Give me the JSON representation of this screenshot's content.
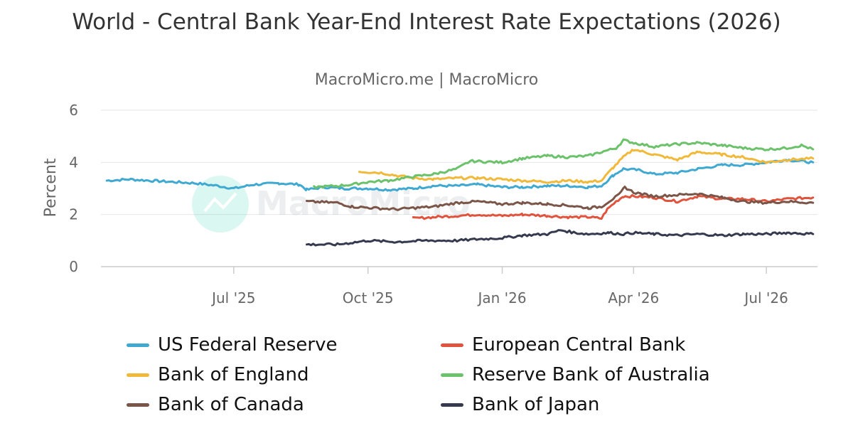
{
  "header": {
    "title": "World - Central Bank Year-End Interest Rate Expectations (2026)",
    "subtitle": "MacroMicro.me | MacroMicro"
  },
  "watermark": {
    "text": "MacroMicro"
  },
  "chart_data": {
    "type": "line",
    "ylabel": "Percent",
    "xlabel": "",
    "ylim": [
      0,
      6
    ],
    "y_ticks": [
      0,
      2,
      4,
      6
    ],
    "x_range": [
      "2025-04-01",
      "2026-08-05"
    ],
    "x_ticks": [
      {
        "date": "2025-07-01",
        "label": "Jul '25"
      },
      {
        "date": "2025-10-01",
        "label": "Oct '25"
      },
      {
        "date": "2026-01-01",
        "label": "Jan '26"
      },
      {
        "date": "2026-04-01",
        "label": "Apr '26"
      },
      {
        "date": "2026-07-01",
        "label": "Jul '26"
      }
    ],
    "grid": "horizontal",
    "legend_position": "bottom",
    "series": [
      {
        "name": "US Federal Reserve",
        "color": "#3fa9d1",
        "points": [
          [
            "2025-04-05",
            3.3
          ],
          [
            "2025-04-20",
            3.35
          ],
          [
            "2025-05-05",
            3.3
          ],
          [
            "2025-05-20",
            3.25
          ],
          [
            "2025-06-05",
            3.2
          ],
          [
            "2025-06-20",
            3.1
          ],
          [
            "2025-07-01",
            3.0
          ],
          [
            "2025-07-15",
            3.15
          ],
          [
            "2025-08-01",
            3.2
          ],
          [
            "2025-08-15",
            3.15
          ],
          [
            "2025-08-20",
            2.95
          ],
          [
            "2025-09-01",
            3.05
          ],
          [
            "2025-09-15",
            3.0
          ],
          [
            "2025-10-01",
            3.0
          ],
          [
            "2025-10-15",
            2.95
          ],
          [
            "2025-11-01",
            3.0
          ],
          [
            "2025-11-15",
            3.1
          ],
          [
            "2025-12-01",
            3.1
          ],
          [
            "2025-12-15",
            3.15
          ],
          [
            "2026-01-01",
            3.05
          ],
          [
            "2026-01-15",
            3.05
          ],
          [
            "2026-02-01",
            3.1
          ],
          [
            "2026-02-15",
            3.1
          ],
          [
            "2026-03-01",
            3.05
          ],
          [
            "2026-03-10",
            3.1
          ],
          [
            "2026-03-18",
            3.5
          ],
          [
            "2026-03-25",
            3.75
          ],
          [
            "2026-04-05",
            3.7
          ],
          [
            "2026-04-15",
            3.55
          ],
          [
            "2026-05-01",
            3.6
          ],
          [
            "2026-05-15",
            3.75
          ],
          [
            "2026-06-01",
            3.9
          ],
          [
            "2026-06-15",
            3.9
          ],
          [
            "2026-07-01",
            4.0
          ],
          [
            "2026-07-15",
            4.1
          ],
          [
            "2026-08-02",
            4.0
          ]
        ]
      },
      {
        "name": "European Central Bank",
        "color": "#e0533d",
        "points": [
          [
            "2025-11-01",
            1.85
          ],
          [
            "2025-11-15",
            1.9
          ],
          [
            "2025-12-01",
            1.95
          ],
          [
            "2025-12-15",
            2.0
          ],
          [
            "2026-01-01",
            1.95
          ],
          [
            "2026-01-15",
            2.0
          ],
          [
            "2026-02-01",
            1.95
          ],
          [
            "2026-02-15",
            1.9
          ],
          [
            "2026-03-01",
            1.9
          ],
          [
            "2026-03-10",
            1.85
          ],
          [
            "2026-03-14",
            2.2
          ],
          [
            "2026-03-20",
            2.5
          ],
          [
            "2026-03-25",
            2.7
          ],
          [
            "2026-04-01",
            2.7
          ],
          [
            "2026-04-15",
            2.65
          ],
          [
            "2026-05-01",
            2.5
          ],
          [
            "2026-05-15",
            2.7
          ],
          [
            "2026-06-01",
            2.6
          ],
          [
            "2026-06-15",
            2.6
          ],
          [
            "2026-07-01",
            2.5
          ],
          [
            "2026-07-15",
            2.6
          ],
          [
            "2026-08-02",
            2.65
          ]
        ]
      },
      {
        "name": "Bank of England",
        "color": "#f0b93a",
        "points": [
          [
            "2025-09-25",
            3.65
          ],
          [
            "2025-10-10",
            3.6
          ],
          [
            "2025-10-20",
            3.5
          ],
          [
            "2025-11-01",
            3.4
          ],
          [
            "2025-11-15",
            3.35
          ],
          [
            "2025-12-01",
            3.4
          ],
          [
            "2025-12-15",
            3.4
          ],
          [
            "2026-01-01",
            3.35
          ],
          [
            "2026-01-15",
            3.3
          ],
          [
            "2026-02-01",
            3.25
          ],
          [
            "2026-02-15",
            3.3
          ],
          [
            "2026-03-01",
            3.25
          ],
          [
            "2026-03-10",
            3.3
          ],
          [
            "2026-03-18",
            3.8
          ],
          [
            "2026-03-25",
            4.2
          ],
          [
            "2026-04-01",
            4.5
          ],
          [
            "2026-04-15",
            4.3
          ],
          [
            "2026-05-01",
            4.1
          ],
          [
            "2026-05-15",
            4.4
          ],
          [
            "2026-06-01",
            4.3
          ],
          [
            "2026-06-15",
            4.2
          ],
          [
            "2026-07-01",
            4.0
          ],
          [
            "2026-07-15",
            4.1
          ],
          [
            "2026-08-02",
            4.15
          ]
        ]
      },
      {
        "name": "Reserve Bank of Australia",
        "color": "#6cc26a",
        "points": [
          [
            "2025-08-25",
            3.05
          ],
          [
            "2025-09-10",
            3.1
          ],
          [
            "2025-09-20",
            3.15
          ],
          [
            "2025-10-01",
            3.25
          ],
          [
            "2025-10-15",
            3.3
          ],
          [
            "2025-11-01",
            3.45
          ],
          [
            "2025-11-15",
            3.55
          ],
          [
            "2025-12-01",
            3.75
          ],
          [
            "2025-12-10",
            4.05
          ],
          [
            "2026-01-01",
            4.0
          ],
          [
            "2026-01-15",
            4.15
          ],
          [
            "2026-02-01",
            4.25
          ],
          [
            "2026-02-15",
            4.2
          ],
          [
            "2026-03-01",
            4.25
          ],
          [
            "2026-03-10",
            4.4
          ],
          [
            "2026-03-20",
            4.55
          ],
          [
            "2026-03-25",
            4.85
          ],
          [
            "2026-04-01",
            4.75
          ],
          [
            "2026-04-15",
            4.6
          ],
          [
            "2026-05-01",
            4.7
          ],
          [
            "2026-05-15",
            4.75
          ],
          [
            "2026-06-01",
            4.65
          ],
          [
            "2026-06-15",
            4.55
          ],
          [
            "2026-07-01",
            4.5
          ],
          [
            "2026-07-15",
            4.55
          ],
          [
            "2026-07-25",
            4.65
          ],
          [
            "2026-08-02",
            4.5
          ]
        ]
      },
      {
        "name": "Bank of Canada",
        "color": "#7a5548",
        "points": [
          [
            "2025-08-20",
            2.5
          ],
          [
            "2025-09-10",
            2.45
          ],
          [
            "2025-09-20",
            2.3
          ],
          [
            "2025-10-05",
            2.25
          ],
          [
            "2025-10-20",
            2.2
          ],
          [
            "2025-11-01",
            2.25
          ],
          [
            "2025-11-15",
            2.3
          ],
          [
            "2025-12-01",
            2.45
          ],
          [
            "2025-12-15",
            2.5
          ],
          [
            "2026-01-01",
            2.4
          ],
          [
            "2026-01-15",
            2.45
          ],
          [
            "2026-02-01",
            2.4
          ],
          [
            "2026-02-15",
            2.35
          ],
          [
            "2026-03-01",
            2.25
          ],
          [
            "2026-03-10",
            2.3
          ],
          [
            "2026-03-15",
            2.5
          ],
          [
            "2026-03-22",
            2.75
          ],
          [
            "2026-03-26",
            3.05
          ],
          [
            "2026-04-01",
            2.85
          ],
          [
            "2026-04-15",
            2.7
          ],
          [
            "2026-05-01",
            2.75
          ],
          [
            "2026-05-15",
            2.8
          ],
          [
            "2026-06-01",
            2.65
          ],
          [
            "2026-06-15",
            2.5
          ],
          [
            "2026-07-01",
            2.45
          ],
          [
            "2026-07-15",
            2.5
          ],
          [
            "2026-08-02",
            2.45
          ]
        ]
      },
      {
        "name": "Bank of Japan",
        "color": "#363a4f",
        "points": [
          [
            "2025-08-20",
            0.85
          ],
          [
            "2025-09-10",
            0.85
          ],
          [
            "2025-10-01",
            1.0
          ],
          [
            "2025-10-20",
            0.95
          ],
          [
            "2025-11-10",
            1.0
          ],
          [
            "2025-12-01",
            1.0
          ],
          [
            "2025-12-15",
            1.05
          ],
          [
            "2026-01-01",
            1.1
          ],
          [
            "2026-01-15",
            1.2
          ],
          [
            "2026-02-01",
            1.25
          ],
          [
            "2026-02-10",
            1.4
          ],
          [
            "2026-02-20",
            1.3
          ],
          [
            "2026-03-01",
            1.25
          ],
          [
            "2026-03-15",
            1.3
          ],
          [
            "2026-03-25",
            1.25
          ],
          [
            "2026-04-01",
            1.3
          ],
          [
            "2026-04-15",
            1.25
          ],
          [
            "2026-05-01",
            1.2
          ],
          [
            "2026-05-15",
            1.25
          ],
          [
            "2026-06-01",
            1.2
          ],
          [
            "2026-06-15",
            1.25
          ],
          [
            "2026-07-01",
            1.25
          ],
          [
            "2026-07-15",
            1.3
          ],
          [
            "2026-08-02",
            1.25
          ]
        ]
      }
    ]
  }
}
